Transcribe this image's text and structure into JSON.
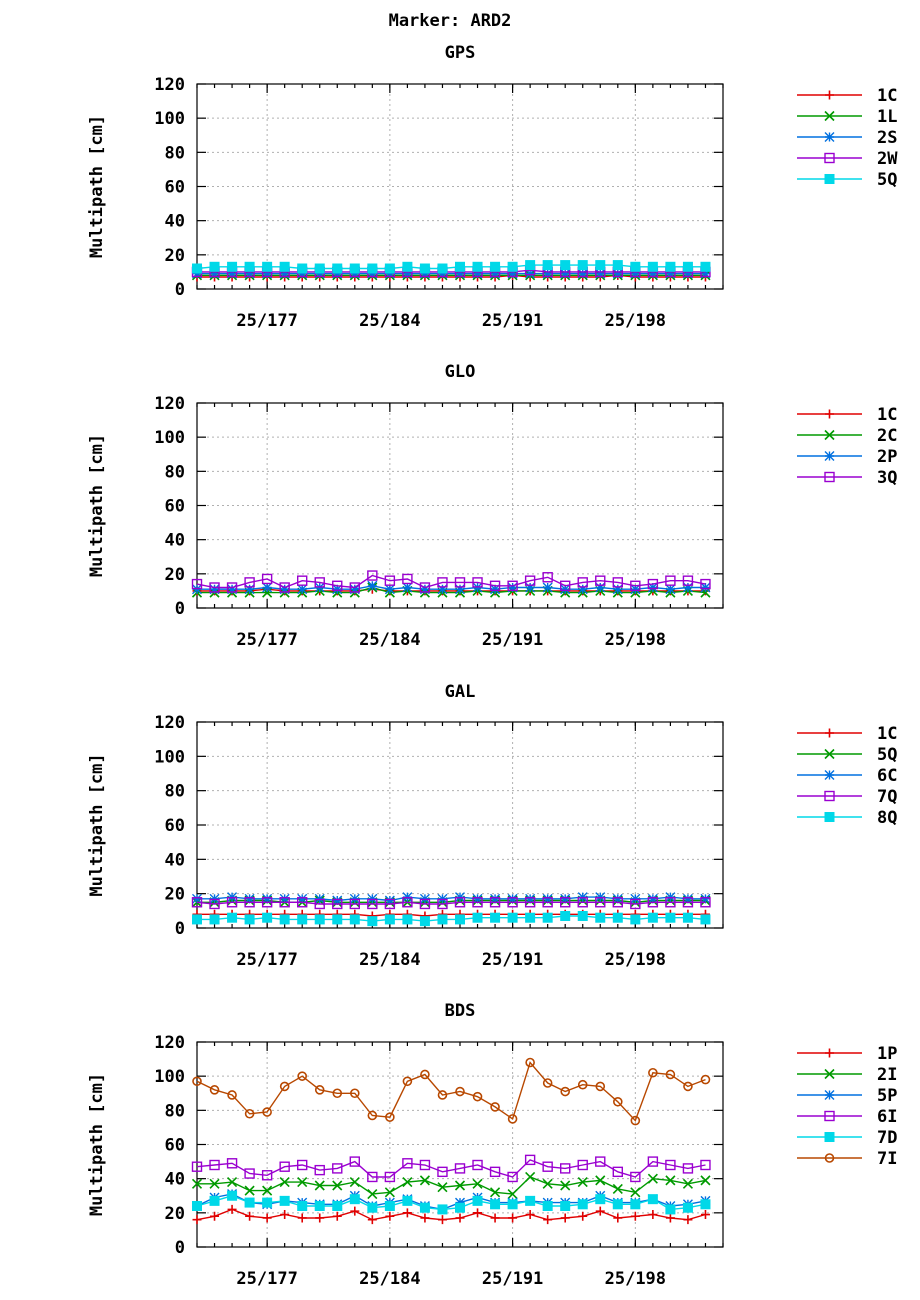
{
  "title": "Marker: ARD2",
  "colors": {
    "1C": "#e00000",
    "1P": "#e00000",
    "1L": "#009a00",
    "2C": "#009a00",
    "5Q_gal": "#009a00",
    "2I": "#009a00",
    "2S": "#0070e0",
    "2P": "#0070e0",
    "6C": "#0070e0",
    "5P": "#0070e0",
    "2W": "#9a00d0",
    "3Q": "#9a00d0",
    "7Q": "#9a00d0",
    "6I": "#9a00d0",
    "5Q": "#00d8e8",
    "8Q": "#00d8e8",
    "7D": "#00d8e8",
    "7I": "#b84800"
  },
  "chart_data": [
    {
      "id": "gps",
      "type": "line",
      "title": "GPS",
      "ylabel": "Multipath [cm]",
      "xlabel": "",
      "ylim": [
        0,
        120
      ],
      "yticks": [
        0,
        20,
        40,
        60,
        80,
        100,
        120
      ],
      "xlim": [
        173,
        203
      ],
      "xticks": [
        177,
        184,
        191,
        198
      ],
      "xtick_labels": [
        "25/177",
        "25/184",
        "25/191",
        "25/198"
      ],
      "grid": true,
      "legend": "right",
      "x": [
        173,
        174,
        175,
        176,
        177,
        178,
        179,
        180,
        181,
        182,
        183,
        184,
        185,
        186,
        187,
        188,
        189,
        190,
        191,
        192,
        193,
        194,
        195,
        196,
        197,
        198,
        199,
        200,
        201,
        202
      ],
      "series": [
        {
          "name": "1C",
          "marker": "plus",
          "color": "#e00000",
          "values": [
            7,
            7,
            7,
            7,
            7,
            7,
            7,
            7,
            7,
            7,
            7,
            7,
            7,
            7,
            7,
            7,
            7,
            7,
            8,
            7,
            7,
            7,
            7,
            7,
            8,
            7,
            7,
            7,
            7,
            7
          ]
        },
        {
          "name": "1L",
          "marker": "cross",
          "color": "#009a00",
          "values": [
            8,
            8,
            8,
            8,
            8,
            8,
            8,
            8,
            8,
            8,
            8,
            8,
            8,
            8,
            8,
            8,
            8,
            8,
            8,
            8,
            8,
            8,
            8,
            8,
            8,
            8,
            8,
            8,
            8,
            8
          ]
        },
        {
          "name": "2S",
          "marker": "star",
          "color": "#0070e0",
          "values": [
            9,
            9,
            9,
            9,
            9,
            9,
            9,
            9,
            9,
            9,
            9,
            9,
            9,
            9,
            9,
            9,
            9,
            9,
            9,
            9,
            9,
            9,
            9,
            9,
            9,
            9,
            9,
            9,
            9,
            9
          ]
        },
        {
          "name": "2W",
          "marker": "box",
          "color": "#9a00d0",
          "values": [
            10,
            10,
            10,
            10,
            10,
            10,
            10,
            10,
            10,
            10,
            10,
            10,
            10,
            10,
            10,
            10,
            10,
            10,
            10,
            11,
            10,
            10,
            10,
            10,
            10,
            10,
            10,
            10,
            10,
            10
          ]
        },
        {
          "name": "5Q",
          "marker": "fbox",
          "color": "#00d8e8",
          "values": [
            12,
            13,
            13,
            13,
            13,
            13,
            12,
            12,
            12,
            12,
            12,
            12,
            13,
            12,
            12,
            13,
            13,
            13,
            13,
            14,
            14,
            14,
            14,
            14,
            14,
            13,
            13,
            13,
            13,
            13
          ]
        }
      ]
    },
    {
      "id": "glo",
      "type": "line",
      "title": "GLO",
      "ylabel": "Multipath [cm]",
      "xlabel": "",
      "ylim": [
        0,
        120
      ],
      "yticks": [
        0,
        20,
        40,
        60,
        80,
        100,
        120
      ],
      "xlim": [
        173,
        203
      ],
      "xticks": [
        177,
        184,
        191,
        198
      ],
      "xtick_labels": [
        "25/177",
        "25/184",
        "25/191",
        "25/198"
      ],
      "grid": true,
      "legend": "right",
      "x": [
        173,
        174,
        175,
        176,
        177,
        178,
        179,
        180,
        181,
        182,
        183,
        184,
        185,
        186,
        187,
        188,
        189,
        190,
        191,
        192,
        193,
        194,
        195,
        196,
        197,
        198,
        199,
        200,
        201,
        202
      ],
      "series": [
        {
          "name": "1C",
          "marker": "plus",
          "color": "#e00000",
          "values": [
            10,
            10,
            10,
            10,
            11,
            10,
            10,
            10,
            10,
            10,
            11,
            10,
            10,
            10,
            10,
            10,
            10,
            10,
            10,
            10,
            10,
            10,
            10,
            10,
            10,
            10,
            10,
            10,
            10,
            10
          ]
        },
        {
          "name": "2C",
          "marker": "cross",
          "color": "#009a00",
          "values": [
            9,
            9,
            9,
            9,
            9,
            9,
            9,
            10,
            9,
            9,
            12,
            9,
            10,
            9,
            9,
            9,
            10,
            9,
            10,
            10,
            10,
            9,
            9,
            10,
            9,
            9,
            10,
            9,
            10,
            9
          ]
        },
        {
          "name": "2P",
          "marker": "star",
          "color": "#0070e0",
          "values": [
            11,
            11,
            11,
            11,
            12,
            11,
            11,
            12,
            11,
            11,
            13,
            11,
            12,
            11,
            11,
            11,
            12,
            11,
            12,
            12,
            12,
            11,
            11,
            12,
            11,
            11,
            12,
            11,
            12,
            12
          ]
        },
        {
          "name": "3Q",
          "marker": "box",
          "color": "#9a00d0",
          "values": [
            14,
            12,
            12,
            15,
            17,
            12,
            16,
            15,
            13,
            12,
            19,
            16,
            17,
            12,
            15,
            15,
            15,
            13,
            13,
            16,
            18,
            13,
            15,
            16,
            15,
            13,
            14,
            16,
            16,
            14
          ]
        }
      ]
    },
    {
      "id": "gal",
      "type": "line",
      "title": "GAL",
      "ylabel": "Multipath [cm]",
      "xlabel": "",
      "ylim": [
        0,
        120
      ],
      "yticks": [
        0,
        20,
        40,
        60,
        80,
        100,
        120
      ],
      "xlim": [
        173,
        203
      ],
      "xticks": [
        177,
        184,
        191,
        198
      ],
      "xtick_labels": [
        "25/177",
        "25/184",
        "25/191",
        "25/198"
      ],
      "grid": true,
      "legend": "right",
      "x": [
        173,
        174,
        175,
        176,
        177,
        178,
        179,
        180,
        181,
        182,
        183,
        184,
        185,
        186,
        187,
        188,
        189,
        190,
        191,
        192,
        193,
        194,
        195,
        196,
        197,
        198,
        199,
        200,
        201,
        202
      ],
      "series": [
        {
          "name": "1C",
          "marker": "plus",
          "color": "#e00000",
          "values": [
            8,
            8,
            8,
            8,
            8,
            8,
            8,
            8,
            8,
            8,
            7,
            8,
            8,
            7,
            8,
            8,
            8,
            8,
            8,
            8,
            8,
            8,
            8,
            8,
            8,
            8,
            8,
            8,
            8,
            8
          ]
        },
        {
          "name": "5Q",
          "marker": "cross",
          "color": "#009a00",
          "values": [
            15,
            15,
            16,
            16,
            16,
            15,
            15,
            16,
            15,
            15,
            15,
            15,
            15,
            15,
            15,
            16,
            16,
            16,
            16,
            16,
            16,
            16,
            16,
            16,
            16,
            15,
            16,
            16,
            16,
            16
          ]
        },
        {
          "name": "6C",
          "marker": "star",
          "color": "#0070e0",
          "values": [
            17,
            17,
            18,
            17,
            17,
            17,
            17,
            17,
            16,
            17,
            17,
            16,
            18,
            17,
            17,
            18,
            17,
            17,
            17,
            17,
            17,
            17,
            18,
            18,
            17,
            17,
            17,
            18,
            17,
            17
          ]
        },
        {
          "name": "7Q",
          "marker": "box",
          "color": "#9a00d0",
          "values": [
            15,
            14,
            15,
            15,
            15,
            15,
            15,
            14,
            14,
            14,
            14,
            14,
            15,
            14,
            14,
            15,
            15,
            15,
            15,
            15,
            15,
            15,
            15,
            15,
            15,
            14,
            15,
            15,
            15,
            15
          ]
        },
        {
          "name": "8Q",
          "marker": "fbox",
          "color": "#00d8e8",
          "values": [
            5,
            5,
            6,
            5,
            6,
            5,
            5,
            5,
            5,
            5,
            4,
            5,
            5,
            4,
            5,
            5,
            6,
            6,
            6,
            6,
            6,
            7,
            7,
            6,
            6,
            5,
            6,
            6,
            6,
            5
          ]
        }
      ]
    },
    {
      "id": "bds",
      "type": "line",
      "title": "BDS",
      "ylabel": "Multipath [cm]",
      "xlabel": "",
      "ylim": [
        0,
        120
      ],
      "yticks": [
        0,
        20,
        40,
        60,
        80,
        100,
        120
      ],
      "xlim": [
        173,
        203
      ],
      "xticks": [
        177,
        184,
        191,
        198
      ],
      "xtick_labels": [
        "25/177",
        "25/184",
        "25/191",
        "25/198"
      ],
      "grid": true,
      "legend": "right",
      "x": [
        173,
        174,
        175,
        176,
        177,
        178,
        179,
        180,
        181,
        182,
        183,
        184,
        185,
        186,
        187,
        188,
        189,
        190,
        191,
        192,
        193,
        194,
        195,
        196,
        197,
        198,
        199,
        200,
        201,
        202
      ],
      "series": [
        {
          "name": "1P",
          "marker": "plus",
          "color": "#e00000",
          "values": [
            16,
            18,
            22,
            18,
            17,
            19,
            17,
            17,
            18,
            21,
            16,
            18,
            20,
            17,
            16,
            17,
            20,
            17,
            17,
            19,
            16,
            17,
            18,
            21,
            17,
            18,
            19,
            17,
            16,
            19
          ]
        },
        {
          "name": "2I",
          "marker": "cross",
          "color": "#009a00",
          "values": [
            37,
            37,
            38,
            33,
            33,
            38,
            38,
            36,
            36,
            38,
            31,
            32,
            38,
            39,
            35,
            36,
            37,
            32,
            31,
            41,
            37,
            36,
            38,
            39,
            34,
            32,
            40,
            39,
            37,
            39
          ]
        },
        {
          "name": "5P",
          "marker": "star",
          "color": "#0070e0",
          "values": [
            24,
            29,
            31,
            26,
            25,
            27,
            26,
            25,
            25,
            30,
            24,
            26,
            28,
            24,
            22,
            26,
            29,
            26,
            26,
            27,
            26,
            26,
            26,
            30,
            26,
            26,
            28,
            24,
            25,
            27
          ]
        },
        {
          "name": "6I",
          "marker": "box",
          "color": "#9a00d0",
          "values": [
            47,
            48,
            49,
            43,
            42,
            47,
            48,
            45,
            46,
            50,
            41,
            41,
            49,
            48,
            44,
            46,
            48,
            44,
            41,
            51,
            47,
            46,
            48,
            50,
            44,
            41,
            50,
            48,
            46,
            48
          ]
        },
        {
          "name": "7D",
          "marker": "fbox",
          "color": "#00d8e8",
          "values": [
            24,
            27,
            30,
            26,
            26,
            27,
            24,
            24,
            24,
            28,
            23,
            24,
            27,
            23,
            22,
            23,
            27,
            25,
            25,
            27,
            24,
            24,
            25,
            28,
            25,
            25,
            28,
            22,
            23,
            25
          ]
        },
        {
          "name": "7I",
          "marker": "circle",
          "color": "#b84800",
          "values": [
            97,
            92,
            89,
            78,
            79,
            94,
            100,
            92,
            90,
            90,
            77,
            76,
            97,
            101,
            89,
            91,
            88,
            82,
            75,
            108,
            96,
            91,
            95,
            94,
            85,
            74,
            102,
            101,
            94,
            98
          ]
        }
      ]
    }
  ]
}
